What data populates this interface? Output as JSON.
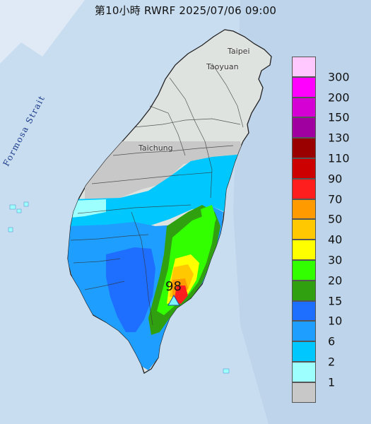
{
  "title": "第10小時  RWRF 2025/07/06 09:00",
  "map": {
    "sea_color": "#c9ddf0",
    "places": [
      "Taipei",
      "Taoyuan",
      "Taichung"
    ],
    "strait_label": "Formosa Strait",
    "max_marker": {
      "value": "98",
      "symbol": "triangle-marker-icon",
      "color": "#7ff0ff"
    }
  },
  "legend": {
    "items": [
      {
        "label": "300",
        "color": "#ffc8ff"
      },
      {
        "label": "200",
        "color": "#ff00ff"
      },
      {
        "label": "150",
        "color": "#d400d4"
      },
      {
        "label": "130",
        "color": "#a000a0"
      },
      {
        "label": "110",
        "color": "#9a0000"
      },
      {
        "label": "90",
        "color": "#cc0000"
      },
      {
        "label": "70",
        "color": "#ff1e1e"
      },
      {
        "label": "50",
        "color": "#ff9a00"
      },
      {
        "label": "40",
        "color": "#ffc800"
      },
      {
        "label": "30",
        "color": "#ffff00"
      },
      {
        "label": "20",
        "color": "#32ff00"
      },
      {
        "label": "15",
        "color": "#30a010"
      },
      {
        "label": "10",
        "color": "#1e6eff"
      },
      {
        "label": "6",
        "color": "#1e9eff"
      },
      {
        "label": "2",
        "color": "#00c8ff"
      },
      {
        "label": "1",
        "color": "#9effff"
      },
      {
        "label": "",
        "color": "#c8c8c8"
      }
    ]
  }
}
